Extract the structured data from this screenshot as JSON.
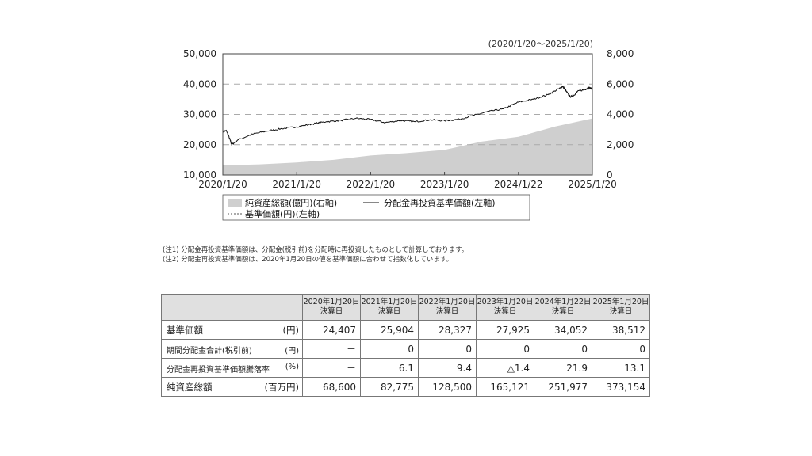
{
  "chart_data": {
    "type": "line",
    "period_label": "(2020/1/20～2025/1/20)",
    "x_tick_labels": [
      "2020/1/20",
      "2021/1/20",
      "2022/1/20",
      "2023/1/20",
      "2024/1/22",
      "2025/1/20"
    ],
    "y_left_ticks": [
      "10,000",
      "20,000",
      "30,000",
      "40,000",
      "50,000"
    ],
    "y_right_ticks": [
      "0",
      "2,000",
      "4,000",
      "6,000",
      "8,000"
    ],
    "ylim_left": [
      10000,
      50000
    ],
    "ylim_right": [
      0,
      8000
    ],
    "gridlines_dashed": true,
    "legend_placement": "bottom",
    "x_range_years": [
      0,
      5
    ],
    "series": [
      {
        "name": "純資産総額(億円)(右軸)",
        "axis": "right",
        "style": "area",
        "color": "#cfcfcf",
        "points": [
          [
            0,
            686
          ],
          [
            0.1,
            650
          ],
          [
            0.5,
            700
          ],
          [
            1,
            828
          ],
          [
            1.5,
            1000
          ],
          [
            2,
            1285
          ],
          [
            2.5,
            1450
          ],
          [
            3,
            1651
          ],
          [
            3.5,
            2200
          ],
          [
            4,
            2520
          ],
          [
            4.5,
            3200
          ],
          [
            5,
            3732
          ]
        ]
      },
      {
        "name": "分配金再投資基準価額(左軸)",
        "axis": "left",
        "style": "line",
        "color": "#111111",
        "points": [
          [
            0,
            24407
          ],
          [
            0.05,
            24600
          ],
          [
            0.1,
            21500
          ],
          [
            0.12,
            20000
          ],
          [
            0.2,
            21500
          ],
          [
            0.4,
            23500
          ],
          [
            0.6,
            24500
          ],
          [
            0.8,
            25300
          ],
          [
            1,
            25904
          ],
          [
            1.2,
            26800
          ],
          [
            1.4,
            27600
          ],
          [
            1.6,
            28000
          ],
          [
            1.8,
            28700
          ],
          [
            2,
            28327
          ],
          [
            2.2,
            27300
          ],
          [
            2.4,
            28000
          ],
          [
            2.6,
            27600
          ],
          [
            2.8,
            28200
          ],
          [
            3,
            27925
          ],
          [
            3.2,
            28400
          ],
          [
            3.4,
            29700
          ],
          [
            3.6,
            31000
          ],
          [
            3.8,
            31800
          ],
          [
            4,
            34052
          ],
          [
            4.2,
            35000
          ],
          [
            4.4,
            36500
          ],
          [
            4.55,
            38500
          ],
          [
            4.6,
            39200
          ],
          [
            4.65,
            37500
          ],
          [
            4.7,
            35800
          ],
          [
            4.75,
            36300
          ],
          [
            4.8,
            37600
          ],
          [
            4.9,
            38200
          ],
          [
            4.95,
            38800
          ],
          [
            5,
            38512
          ]
        ]
      },
      {
        "name": "基準価額(円)(左軸)",
        "axis": "left",
        "style": "dashed-line",
        "color": "#555555"
      }
    ]
  },
  "notes": [
    "(注1) 分配金再投資基準価額は、分配金(税引前)を分配時に再投資したものとして計算しております。",
    "(注2) 分配金再投資基準価額は、2020年1月20日の値を基準価額に合わせて指数化しています。"
  ],
  "table": {
    "columns": [
      {
        "date": "2020年1月20日",
        "sub": "決算日"
      },
      {
        "date": "2021年1月20日",
        "sub": "決算日"
      },
      {
        "date": "2022年1月20日",
        "sub": "決算日"
      },
      {
        "date": "2023年1月20日",
        "sub": "決算日"
      },
      {
        "date": "2024年1月22日",
        "sub": "決算日"
      },
      {
        "date": "2025年1月20日",
        "sub": "決算日"
      }
    ],
    "rows": [
      {
        "label": "基準価額",
        "unit": "(円)",
        "values": [
          "24,407",
          "25,904",
          "28,327",
          "27,925",
          "34,052",
          "38,512"
        ]
      },
      {
        "label": "期間分配金合計(税引前)",
        "unit": "(円)",
        "values": [
          "－",
          "0",
          "0",
          "0",
          "0",
          "0"
        ]
      },
      {
        "label": "分配金再投資基準価額騰落率",
        "unit": "(%)",
        "values": [
          "－",
          "6.1",
          "9.4",
          "△1.4",
          "21.9",
          "13.1"
        ]
      },
      {
        "label": "純資産総額",
        "unit": "(百万円)",
        "values": [
          "68,600",
          "82,775",
          "128,500",
          "165,121",
          "251,977",
          "373,154"
        ]
      }
    ]
  }
}
